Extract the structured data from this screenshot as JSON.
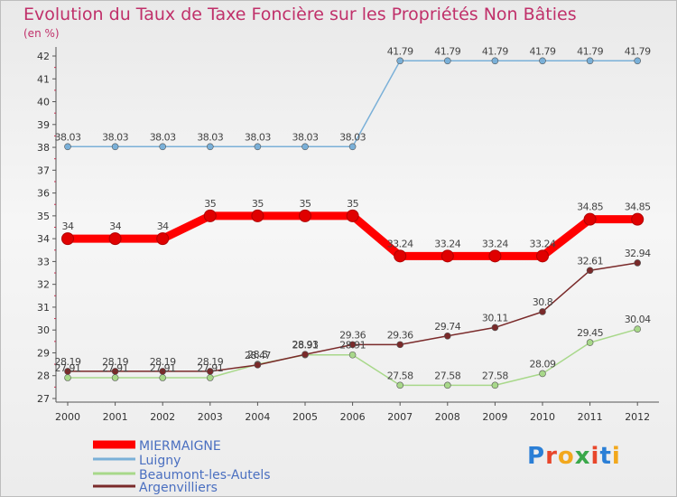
{
  "chart_data": {
    "type": "line",
    "title": "Evolution du Taux de Taxe Foncière sur les Propriétés Non Bâties",
    "subtitle": "(en %)",
    "xlabel": "",
    "ylabel": "",
    "ylim": [
      27,
      42
    ],
    "yticks": [
      27,
      28,
      29,
      30,
      31,
      32,
      33,
      34,
      35,
      36,
      37,
      38,
      39,
      40,
      41,
      42
    ],
    "categories": [
      "2000",
      "2001",
      "2002",
      "2003",
      "2004",
      "2005",
      "2006",
      "2007",
      "2008",
      "2009",
      "2010",
      "2011",
      "2012"
    ],
    "series": [
      {
        "name": "MIERMAIGNE",
        "color": "#ff0000",
        "values": [
          34,
          34,
          34,
          35,
          35,
          35,
          35,
          33.24,
          33.24,
          33.24,
          33.24,
          34.85,
          34.85
        ],
        "labels": [
          "34",
          "34",
          "34",
          "35",
          "35",
          "35",
          "35",
          "33.24",
          "33.24",
          "33.24",
          "33.24",
          "34.85",
          "34.85"
        ]
      },
      {
        "name": "Luigny",
        "color": "#7ab0d8",
        "values": [
          38.03,
          38.03,
          38.03,
          38.03,
          38.03,
          38.03,
          38.03,
          41.79,
          41.79,
          41.79,
          41.79,
          41.79,
          41.79
        ],
        "labels": [
          "38.03",
          "38.03",
          "38.03",
          "38.03",
          "38.03",
          "38.03",
          "38.03",
          "41.79",
          "41.79",
          "41.79",
          "41.79",
          "41.79",
          "41.79"
        ]
      },
      {
        "name": "Beaumont-les-Autels",
        "color": "#a8d88a",
        "values": [
          27.91,
          27.91,
          27.91,
          27.91,
          28.5,
          28.91,
          28.91,
          27.58,
          27.58,
          27.58,
          28.09,
          29.45,
          30.04
        ],
        "labels": [
          "27.91",
          "27.91",
          "27.91",
          "27.91",
          "28.5",
          "28.91",
          "28.91",
          "27.58",
          "27.58",
          "27.58",
          "28.09",
          "29.45",
          "30.04"
        ]
      },
      {
        "name": "Argenvilliers",
        "color": "#7a2a2a",
        "values": [
          28.19,
          28.19,
          28.19,
          28.19,
          28.47,
          28.93,
          29.36,
          29.36,
          29.74,
          30.11,
          30.8,
          32.61,
          32.94
        ],
        "labels": [
          "28.19",
          "28.19",
          "28.19",
          "28.19",
          "28.47",
          "28.93",
          "29.36",
          "29.36",
          "29.74",
          "30.11",
          "30.8",
          "32.61",
          "32.94"
        ]
      }
    ],
    "legend_position": "bottom-left",
    "grid": false
  },
  "brand": {
    "logo_text": "Proxiti",
    "title_color": "#c0306a",
    "legend_text_color": "#4a6fc0"
  }
}
